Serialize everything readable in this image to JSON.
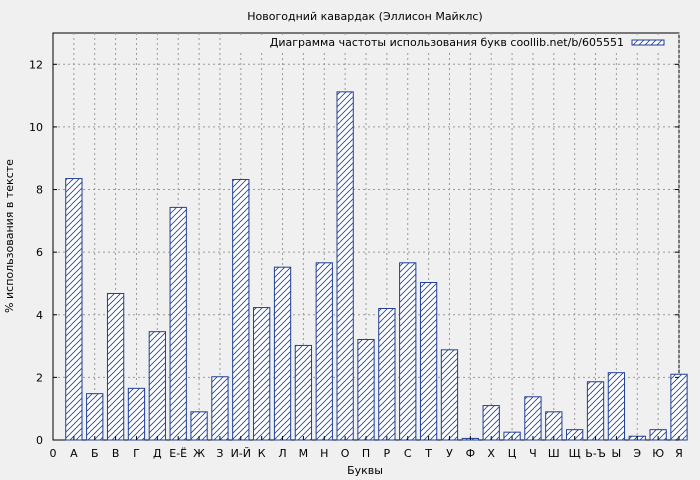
{
  "chart_data": {
    "type": "bar",
    "title": "Новогодний кавардак (Эллисон Майклс)",
    "xlabel": "Буквы",
    "ylabel": "% использования в тексте",
    "legend": {
      "label": "Диаграмма частоты использования букв coollib.net/b/605551",
      "position": "top-right"
    },
    "ylim": [
      0,
      13
    ],
    "yticks": [
      0,
      2,
      4,
      6,
      8,
      10,
      12
    ],
    "grid": true,
    "x_axis_start_label": "0",
    "categories": [
      "А",
      "Б",
      "В",
      "Г",
      "Д",
      "Е-Ё",
      "Ж",
      "З",
      "И-Й",
      "К",
      "Л",
      "М",
      "Н",
      "О",
      "П",
      "Р",
      "С",
      "Т",
      "У",
      "Ф",
      "Х",
      "Ц",
      "Ч",
      "Ш",
      "Щ",
      "Ь-Ъ",
      "Ы",
      "Э",
      "Ю",
      "Я"
    ],
    "values": [
      8.35,
      1.48,
      4.68,
      1.65,
      3.46,
      7.43,
      0.9,
      2.02,
      8.32,
      4.23,
      5.52,
      3.02,
      5.66,
      11.12,
      3.21,
      4.2,
      5.66,
      5.03,
      2.88,
      0.05,
      1.1,
      0.25,
      1.38,
      0.9,
      0.33,
      1.86,
      2.15,
      0.12,
      0.33,
      2.1
    ],
    "colors": {
      "bar_stroke": "#1f3f99",
      "hatch": "#1f3f99",
      "bar_fill": "#ffffff",
      "grid": "#999999",
      "background": "#f0f0f0"
    }
  }
}
